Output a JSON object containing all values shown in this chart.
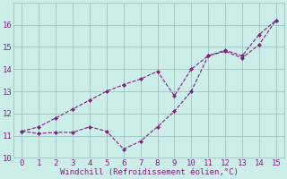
{
  "xlabel": "Windchill (Refroidissement éolien,°C)",
  "x": [
    0,
    1,
    2,
    3,
    4,
    5,
    6,
    7,
    8,
    9,
    10,
    11,
    12,
    13,
    14,
    15
  ],
  "line_lower": [
    11.2,
    11.1,
    11.15,
    11.15,
    11.4,
    11.2,
    10.4,
    10.75,
    11.4,
    12.1,
    13.0,
    14.6,
    14.8,
    14.5,
    15.1,
    16.2
  ],
  "line_upper": [
    11.2,
    11.4,
    11.8,
    12.2,
    12.6,
    13.0,
    13.3,
    13.55,
    13.9,
    12.8,
    14.0,
    14.6,
    14.85,
    14.6,
    15.55,
    16.2
  ],
  "line_color": "#802080",
  "bg_color": "#cceee8",
  "grid_color": "#99bbbb",
  "ylim": [
    10,
    17
  ],
  "xlim": [
    -0.5,
    15.5
  ],
  "yticks": [
    10,
    11,
    12,
    13,
    14,
    15,
    16
  ],
  "xticks": [
    0,
    1,
    2,
    3,
    4,
    5,
    6,
    7,
    8,
    9,
    10,
    11,
    12,
    13,
    14,
    15
  ],
  "markersize": 2.5,
  "linewidth": 0.8,
  "tick_fontsize": 6.5,
  "xlabel_fontsize": 6.5
}
